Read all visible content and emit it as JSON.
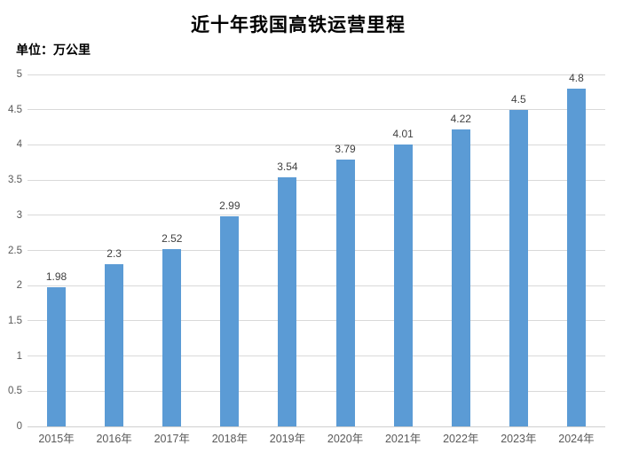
{
  "chart_data": {
    "type": "bar",
    "title": "近十年我国高铁运营里程",
    "unit_label": "单位：万公里",
    "categories": [
      "2015年",
      "2016年",
      "2017年",
      "2018年",
      "2019年",
      "2020年",
      "2021年",
      "2022年",
      "2023年",
      "2024年"
    ],
    "values": [
      1.98,
      2.3,
      2.52,
      2.99,
      3.54,
      3.79,
      4.01,
      4.22,
      4.5,
      4.8
    ],
    "value_labels": [
      "1.98",
      "2.3",
      "2.52",
      "2.99",
      "3.54",
      "3.79",
      "4.01",
      "4.22",
      "4.5",
      "4.8"
    ],
    "xlabel": "",
    "ylabel": "",
    "ylim": [
      0,
      5
    ],
    "ytick_step": 0.5,
    "ytick_labels": [
      "0",
      "0.5",
      "1",
      "1.5",
      "2",
      "2.5",
      "3",
      "3.5",
      "4",
      "4.5",
      "5"
    ],
    "grid": true,
    "legend_position": "none",
    "colors": {
      "bar": "#5B9BD5",
      "gridline": "#D9D9D9",
      "axis_line": "#D0D0D0",
      "axis_tick_label": "#595959",
      "data_label": "#404040",
      "title": "#000000",
      "background": "#FFFFFF"
    }
  }
}
